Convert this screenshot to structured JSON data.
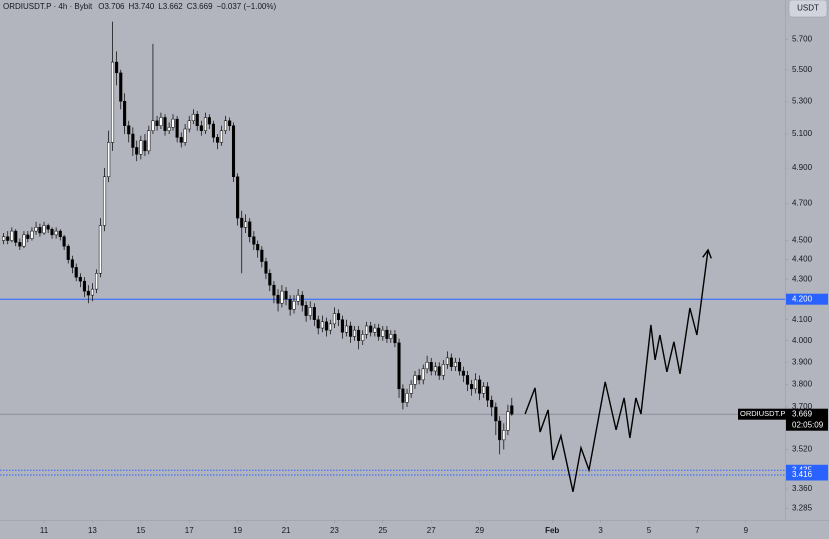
{
  "header": {
    "title": "ORDIUSDT.P · 4h · Bybit",
    "stats": [
      "O3.706",
      "H3.740",
      "L3.662",
      "C3.669",
      "−0.037 (−1.00%)"
    ]
  },
  "currency_button": "USDT",
  "chart_data": {
    "type": "candlestick",
    "log_scale": true,
    "background": "#b2b5be",
    "up_color": "#ffffff",
    "down_color": "#000000",
    "wick_color": "#000000",
    "xlim": [
      9.18,
      41.62
    ],
    "ylim": [
      3.24,
      5.97
    ],
    "xticks": [
      11,
      13,
      15,
      17,
      19,
      21,
      23,
      25,
      27,
      29,
      {
        "value": 32,
        "label": "Feb"
      },
      {
        "value": 34,
        "label": "3"
      },
      {
        "value": 36,
        "label": "5"
      },
      {
        "value": 38,
        "label": "7"
      },
      {
        "value": 40,
        "label": "9"
      }
    ],
    "yticks": [
      3.285,
      {
        "value": 3.36,
        "label": "3.360"
      },
      {
        "value": 3.52,
        "label": "3.520"
      },
      {
        "value": 3.7,
        "label": "3.700"
      },
      {
        "value": 3.8,
        "label": "3.800"
      },
      {
        "value": 3.9,
        "label": "3.900"
      },
      {
        "value": 4,
        "label": "4.000"
      },
      {
        "value": 4.1,
        "label": "4.100"
      },
      {
        "value": 4.3,
        "label": "4.300"
      },
      {
        "value": 4.4,
        "label": "4.400"
      },
      {
        "value": 4.5,
        "label": "4.500"
      },
      {
        "value": 4.7,
        "label": "4.700"
      },
      {
        "value": 4.9,
        "label": "4.900"
      },
      {
        "value": 5.1,
        "label": "5.100"
      },
      {
        "value": 5.3,
        "label": "5.300"
      },
      {
        "value": 5.5,
        "label": "5.500"
      },
      {
        "value": 5.7,
        "label": "5.700"
      }
    ],
    "x": [
      9.33,
      9.5,
      9.67,
      9.83,
      10,
      10.17,
      10.33,
      10.5,
      10.67,
      10.83,
      11,
      11.17,
      11.33,
      11.5,
      11.67,
      11.83,
      12,
      12.17,
      12.33,
      12.5,
      12.67,
      12.83,
      13,
      13.17,
      13.33,
      13.5,
      13.67,
      13.83,
      14,
      14.17,
      14.33,
      14.5,
      14.67,
      14.83,
      15,
      15.17,
      15.33,
      15.5,
      15.67,
      15.83,
      16,
      16.17,
      16.33,
      16.5,
      16.67,
      16.83,
      17,
      17.17,
      17.33,
      17.5,
      17.67,
      17.83,
      18,
      18.17,
      18.33,
      18.5,
      18.67,
      18.83,
      19,
      19.17,
      19.33,
      19.5,
      19.67,
      19.83,
      20,
      20.17,
      20.33,
      20.5,
      20.67,
      20.83,
      21,
      21.17,
      21.33,
      21.5,
      21.67,
      21.83,
      22,
      22.17,
      22.33,
      22.5,
      22.67,
      22.83,
      23,
      23.17,
      23.33,
      23.5,
      23.67,
      23.83,
      24,
      24.17,
      24.33,
      24.5,
      24.67,
      24.83,
      25,
      25.17,
      25.33,
      25.5,
      25.67,
      25.83,
      26,
      26.17,
      26.33,
      26.5,
      26.67,
      26.83,
      27,
      27.17,
      27.33,
      27.5,
      27.67,
      27.83,
      28,
      28.17,
      28.33,
      28.5,
      28.67,
      28.83,
      29,
      29.17,
      29.33,
      29.5,
      29.67,
      29.83,
      30,
      30.17,
      30.33
    ],
    "open": [
      4.5,
      4.52,
      4.5,
      4.55,
      4.49,
      4.47,
      4.53,
      4.51,
      4.55,
      4.57,
      4.54,
      4.58,
      4.56,
      4.53,
      4.55,
      4.52,
      4.47,
      4.4,
      4.36,
      4.31,
      4.29,
      4.24,
      4.22,
      4.25,
      4.33,
      4.58,
      4.85,
      5.05,
      5.55,
      5.48,
      5.3,
      5.15,
      5.1,
      5.02,
      4.98,
      5.06,
      5.0,
      5.12,
      5.18,
      5.15,
      5.2,
      5.12,
      5.14,
      5.19,
      5.08,
      5.05,
      5.13,
      5.18,
      5.22,
      5.15,
      5.12,
      5.2,
      5.16,
      5.08,
      5.05,
      5.12,
      5.18,
      5.15,
      4.85,
      4.62,
      4.57,
      4.6,
      4.52,
      4.48,
      4.45,
      4.39,
      4.33,
      4.27,
      4.22,
      4.18,
      4.24,
      4.2,
      4.15,
      4.19,
      4.22,
      4.17,
      4.12,
      4.16,
      4.1,
      4.06,
      4.09,
      4.05,
      4.08,
      4.13,
      4.1,
      4.04,
      4.07,
      4.02,
      4.05,
      4.0,
      4.03,
      4.07,
      4.04,
      4.06,
      4.02,
      4.05,
      4.01,
      4.03,
      3.99,
      3.78,
      3.72,
      3.76,
      3.8,
      3.84,
      3.82,
      3.87,
      3.9,
      3.86,
      3.88,
      3.84,
      3.89,
      3.92,
      3.88,
      3.9,
      3.86,
      3.84,
      3.8,
      3.78,
      3.82,
      3.76,
      3.79,
      3.73,
      3.7,
      3.64,
      3.56,
      3.6,
      3.706
    ],
    "high": [
      4.54,
      4.55,
      4.57,
      4.56,
      4.51,
      4.55,
      4.55,
      4.57,
      4.6,
      4.59,
      4.6,
      4.59,
      4.57,
      4.57,
      4.56,
      4.53,
      4.48,
      4.42,
      4.38,
      4.33,
      4.31,
      4.27,
      4.28,
      4.35,
      4.62,
      4.9,
      5.12,
      5.82,
      5.62,
      5.5,
      5.35,
      5.18,
      5.14,
      5.06,
      5.09,
      5.1,
      5.15,
      5.67,
      5.21,
      5.23,
      5.22,
      5.17,
      5.22,
      5.21,
      5.11,
      5.16,
      5.21,
      5.25,
      5.24,
      5.18,
      5.23,
      5.22,
      5.18,
      5.1,
      5.15,
      5.21,
      5.2,
      5.17,
      4.87,
      4.66,
      4.64,
      4.62,
      4.55,
      4.5,
      4.47,
      4.41,
      4.35,
      4.29,
      4.25,
      4.27,
      4.26,
      4.22,
      4.22,
      4.25,
      4.24,
      4.19,
      4.19,
      4.18,
      4.12,
      4.12,
      4.11,
      4.1,
      4.16,
      4.15,
      4.12,
      4.1,
      4.09,
      4.07,
      4.07,
      4.05,
      4.09,
      4.09,
      4.08,
      4.08,
      4.07,
      4.07,
      4.05,
      4.05,
      4.01,
      3.8,
      3.78,
      3.82,
      3.86,
      3.87,
      3.89,
      3.93,
      3.92,
      3.9,
      3.9,
      3.91,
      3.95,
      3.94,
      3.92,
      3.92,
      3.88,
      3.86,
      3.82,
      3.85,
      3.84,
      3.81,
      3.81,
      3.75,
      3.72,
      3.66,
      3.63,
      3.71,
      3.74
    ],
    "low": [
      4.48,
      4.48,
      4.49,
      4.47,
      4.45,
      4.46,
      4.49,
      4.5,
      4.53,
      4.52,
      4.53,
      4.54,
      4.51,
      4.51,
      4.5,
      4.45,
      4.38,
      4.33,
      4.29,
      4.26,
      4.21,
      4.18,
      4.19,
      4.23,
      4.31,
      4.55,
      4.82,
      5.0,
      5.4,
      5.25,
      5.1,
      5.05,
      4.97,
      4.94,
      4.95,
      4.97,
      4.98,
      5.1,
      5.12,
      5.13,
      5.09,
      5.1,
      5.12,
      5.05,
      5.02,
      5.03,
      5.11,
      5.16,
      5.12,
      5.09,
      5.1,
      5.13,
      5.05,
      5.01,
      5.03,
      5.1,
      5.12,
      4.82,
      4.58,
      4.33,
      4.54,
      4.49,
      4.45,
      4.41,
      4.36,
      4.3,
      4.24,
      4.18,
      4.14,
      4.16,
      4.17,
      4.12,
      4.13,
      4.17,
      4.14,
      4.09,
      4.1,
      4.07,
      4.03,
      4.04,
      4.02,
      4.03,
      4.06,
      4.07,
      4.01,
      4.02,
      3.99,
      4.0,
      3.96,
      3.98,
      4.01,
      4.02,
      4.02,
      4.0,
      4.0,
      3.99,
      3.99,
      3.97,
      3.74,
      3.69,
      3.7,
      3.74,
      3.78,
      3.8,
      3.8,
      3.85,
      3.84,
      3.84,
      3.82,
      3.82,
      3.87,
      3.86,
      3.86,
      3.84,
      3.81,
      3.77,
      3.75,
      3.76,
      3.73,
      3.74,
      3.7,
      3.66,
      3.58,
      3.5,
      3.52,
      3.58,
      3.662
    ],
    "close": [
      4.52,
      4.5,
      4.55,
      4.49,
      4.47,
      4.53,
      4.51,
      4.55,
      4.57,
      4.54,
      4.58,
      4.56,
      4.53,
      4.55,
      4.52,
      4.47,
      4.4,
      4.36,
      4.31,
      4.29,
      4.24,
      4.22,
      4.25,
      4.33,
      4.58,
      4.85,
      5.05,
      5.55,
      5.48,
      5.3,
      5.15,
      5.1,
      5.02,
      4.98,
      5.06,
      5.0,
      5.12,
      5.18,
      5.15,
      5.2,
      5.12,
      5.14,
      5.19,
      5.08,
      5.05,
      5.13,
      5.18,
      5.22,
      5.15,
      5.12,
      5.2,
      5.16,
      5.08,
      5.05,
      5.12,
      5.18,
      5.15,
      4.85,
      4.62,
      4.57,
      4.6,
      4.52,
      4.48,
      4.45,
      4.39,
      4.33,
      4.27,
      4.22,
      4.18,
      4.24,
      4.2,
      4.15,
      4.19,
      4.22,
      4.17,
      4.12,
      4.16,
      4.1,
      4.06,
      4.09,
      4.05,
      4.08,
      4.13,
      4.1,
      4.04,
      4.07,
      4.02,
      4.05,
      4.0,
      4.03,
      4.07,
      4.04,
      4.06,
      4.02,
      4.05,
      4.01,
      4.03,
      3.99,
      3.78,
      3.72,
      3.76,
      3.8,
      3.84,
      3.82,
      3.87,
      3.9,
      3.86,
      3.88,
      3.84,
      3.89,
      3.92,
      3.88,
      3.9,
      3.86,
      3.84,
      3.8,
      3.78,
      3.82,
      3.76,
      3.79,
      3.73,
      3.7,
      3.64,
      3.56,
      3.6,
      3.68,
      3.669
    ],
    "projection": {
      "color": "#000000",
      "x": [
        30.88,
        31.29,
        31.5,
        31.83,
        32.03,
        32.36,
        32.86,
        33.19,
        33.52,
        34.19,
        34.64,
        34.97,
        35.21,
        35.46,
        35.67,
        36.08,
        36.25,
        36.45,
        36.74,
        37.03,
        37.28,
        37.69,
        37.98,
        38.44
      ],
      "values": [
        3.67,
        3.784,
        3.593,
        3.688,
        3.477,
        3.577,
        3.349,
        3.527,
        3.436,
        3.811,
        3.602,
        3.74,
        3.568,
        3.74,
        3.67,
        4.075,
        3.911,
        4.027,
        3.856,
        3.995,
        3.847,
        4.157,
        4.027,
        4.45
      ]
    },
    "levels": [
      {
        "value": 4.2,
        "label": "4.200",
        "color": "#2962ff",
        "style": "solid"
      },
      {
        "value": 3.435,
        "color": "#2962ff",
        "style": "dotted"
      },
      {
        "value": 3.416,
        "color": "#2962ff",
        "style": "dotted"
      }
    ],
    "current_price": {
      "value": 3.669,
      "symbol": "ORDIUSDT.P",
      "countdown": "02:05:09",
      "color": "#787b86"
    }
  }
}
